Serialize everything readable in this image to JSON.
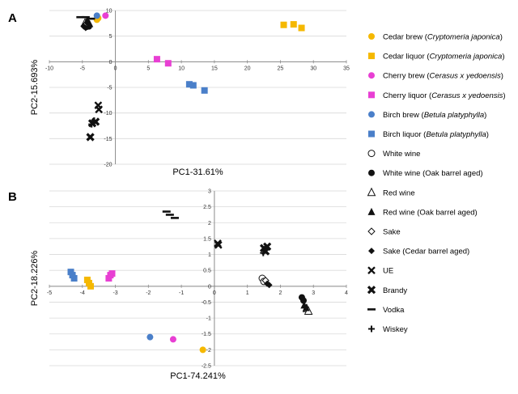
{
  "panels": {
    "a_label": "A",
    "b_label": "B"
  },
  "colors": {
    "cedar": "#f5b800",
    "cherry": "#e83fd3",
    "birch": "#4a7fc9",
    "black": "#111111",
    "grid": "#d9d9d9",
    "axis": "#8c8c8c"
  },
  "legend": [
    {
      "marker": "circle",
      "color": "cedar",
      "prefix": "Cedar brew (",
      "italic": "Cryptomeria japonica",
      "suffix": ")"
    },
    {
      "marker": "square",
      "color": "cedar",
      "prefix": "Cedar liquor (",
      "italic": "Cryptomeria japonica",
      "suffix": ")"
    },
    {
      "marker": "circle",
      "color": "cherry",
      "prefix": "Cherry brew (",
      "italic": "Cerasus x yedoensis",
      "suffix": ")"
    },
    {
      "marker": "square",
      "color": "cherry",
      "prefix": "Cherry liquor (",
      "italic": "Cerasus x yedoensis",
      "suffix": ")"
    },
    {
      "marker": "circle",
      "color": "birch",
      "prefix": "Birch brew (",
      "italic": "Betula platyphylla",
      "suffix": ")"
    },
    {
      "marker": "square",
      "color": "birch",
      "prefix": "Birch liquor (",
      "italic": "Betula platyphylla",
      "suffix": ")"
    },
    {
      "marker": "open-circle",
      "color": "black",
      "prefix": "White wine",
      "italic": "",
      "suffix": ""
    },
    {
      "marker": "circle",
      "color": "black",
      "prefix": "White wine (Oak barrel aged)",
      "italic": "",
      "suffix": ""
    },
    {
      "marker": "open-triangle",
      "color": "black",
      "prefix": "Red wine",
      "italic": "",
      "suffix": ""
    },
    {
      "marker": "triangle",
      "color": "black",
      "prefix": "Red wine (Oak barrel aged)",
      "italic": "",
      "suffix": ""
    },
    {
      "marker": "open-diamond",
      "color": "black",
      "prefix": "Sake",
      "italic": "",
      "suffix": ""
    },
    {
      "marker": "diamond",
      "color": "black",
      "prefix": "Sake (Cedar barrel aged)",
      "italic": "",
      "suffix": ""
    },
    {
      "marker": "x",
      "color": "black",
      "prefix": "UE",
      "italic": "",
      "suffix": ""
    },
    {
      "marker": "bigx",
      "color": "black",
      "prefix": "Brandy",
      "italic": "",
      "suffix": ""
    },
    {
      "marker": "dash",
      "color": "black",
      "prefix": "Vodka",
      "italic": "",
      "suffix": ""
    },
    {
      "marker": "plus",
      "color": "black",
      "prefix": "Wiskey",
      "italic": "",
      "suffix": ""
    }
  ],
  "chart_data": [
    {
      "panel": "A",
      "type": "scatter",
      "xlabel": "PC1-31.61%",
      "ylabel": "PC2-15.693%",
      "xlim": [
        -10,
        35
      ],
      "ylim": [
        -20,
        10
      ],
      "xticks": [
        -10,
        -5,
        0,
        5,
        10,
        15,
        20,
        25,
        30,
        35
      ],
      "yticks": [
        10,
        5,
        0,
        -5,
        -10,
        -15,
        -20
      ],
      "grid": true,
      "series": [
        {
          "name": "Cedar brew",
          "marker": "circle",
          "color": "cedar",
          "points": [
            [
              -2.8,
              8.2
            ],
            [
              -2.6,
              8.5
            ]
          ]
        },
        {
          "name": "Cedar liquor",
          "marker": "square",
          "color": "cedar",
          "points": [
            [
              25.5,
              7.2
            ],
            [
              27.0,
              7.3
            ],
            [
              28.2,
              6.6
            ]
          ]
        },
        {
          "name": "Cherry brew",
          "marker": "circle",
          "color": "cherry",
          "points": [
            [
              -1.5,
              9.0
            ]
          ]
        },
        {
          "name": "Cherry liquor",
          "marker": "square",
          "color": "cherry",
          "points": [
            [
              6.3,
              0.5
            ],
            [
              8.0,
              -0.3
            ]
          ]
        },
        {
          "name": "Birch brew",
          "marker": "circle",
          "color": "birch",
          "points": [
            [
              -2.8,
              9.0
            ]
          ]
        },
        {
          "name": "Birch liquor",
          "marker": "square",
          "color": "birch",
          "points": [
            [
              11.2,
              -4.4
            ],
            [
              11.8,
              -4.6
            ],
            [
              13.5,
              -5.6
            ]
          ]
        },
        {
          "name": "White wine",
          "marker": "open-circle",
          "color": "black",
          "points": [
            [
              -4.5,
              7.2
            ],
            [
              -4.2,
              7.0
            ]
          ]
        },
        {
          "name": "White wine (Oak barrel aged)",
          "marker": "circle",
          "color": "black",
          "points": [
            [
              -4.4,
              6.8
            ],
            [
              -4.0,
              6.9
            ]
          ]
        },
        {
          "name": "Red wine",
          "marker": "open-triangle",
          "color": "black",
          "points": [
            [
              -4.6,
              7.6
            ]
          ]
        },
        {
          "name": "Red wine (Oak barrel aged)",
          "marker": "triangle",
          "color": "black",
          "points": [
            [
              -4.3,
              8.0
            ],
            [
              -4.1,
              7.7
            ],
            [
              -3.9,
              7.4
            ]
          ]
        },
        {
          "name": "Sake",
          "marker": "open-diamond",
          "color": "black",
          "points": [
            [
              -4.7,
              7.0
            ]
          ]
        },
        {
          "name": "Sake (Cedar barrel aged)",
          "marker": "diamond",
          "color": "black",
          "points": [
            [
              -4.8,
              6.9
            ],
            [
              -4.5,
              6.6
            ]
          ]
        },
        {
          "name": "UE",
          "marker": "x",
          "color": "black",
          "points": [
            [
              -2.6,
              -8.5
            ],
            [
              -2.5,
              -9.3
            ]
          ]
        },
        {
          "name": "Brandy",
          "marker": "bigx",
          "color": "black",
          "points": [
            [
              -3.5,
              -12.0
            ],
            [
              -3.0,
              -11.7
            ],
            [
              -3.8,
              -14.7
            ]
          ]
        },
        {
          "name": "Vodka",
          "marker": "dash",
          "color": "black",
          "points": [
            [
              -5.3,
              8.7
            ],
            [
              -4.5,
              8.7
            ],
            [
              -3.7,
              8.4
            ]
          ]
        },
        {
          "name": "Wiskey",
          "marker": "plus",
          "color": "black",
          "points": [
            [
              -3.2,
              -11.5
            ],
            [
              -3.6,
              -12.2
            ]
          ]
        }
      ]
    },
    {
      "panel": "B",
      "type": "scatter",
      "xlabel": "PC1-74.241%",
      "ylabel": "PC2-18.226%",
      "xlim": [
        -5,
        4
      ],
      "ylim": [
        -2.5,
        3
      ],
      "xticks": [
        -5,
        -4,
        -3,
        -2,
        -1,
        0,
        1,
        2,
        3,
        4
      ],
      "yticks": [
        3,
        2.5,
        2,
        1.5,
        1,
        0.5,
        0,
        -0.5,
        -1,
        -1.5,
        -2,
        -2.5
      ],
      "grid": true,
      "series": [
        {
          "name": "Cedar brew",
          "marker": "circle",
          "color": "cedar",
          "points": [
            [
              -0.35,
              -2.0
            ]
          ]
        },
        {
          "name": "Cedar liquor",
          "marker": "square",
          "color": "cedar",
          "points": [
            [
              -3.85,
              0.2
            ],
            [
              -3.8,
              0.1
            ],
            [
              -3.75,
              0.0
            ]
          ]
        },
        {
          "name": "Cherry brew",
          "marker": "circle",
          "color": "cherry",
          "points": [
            [
              -1.25,
              -1.67
            ]
          ]
        },
        {
          "name": "Cherry liquor",
          "marker": "square",
          "color": "cherry",
          "points": [
            [
              -3.2,
              0.25
            ],
            [
              -3.15,
              0.35
            ],
            [
              -3.1,
              0.4
            ]
          ]
        },
        {
          "name": "Birch brew",
          "marker": "circle",
          "color": "birch",
          "points": [
            [
              -1.95,
              -1.6
            ]
          ]
        },
        {
          "name": "Birch liquor",
          "marker": "square",
          "color": "birch",
          "points": [
            [
              -4.35,
              0.45
            ],
            [
              -4.3,
              0.35
            ],
            [
              -4.25,
              0.25
            ]
          ]
        },
        {
          "name": "White wine",
          "marker": "open-circle",
          "color": "black",
          "points": [
            [
              1.45,
              0.25
            ],
            [
              1.5,
              0.15
            ]
          ]
        },
        {
          "name": "White wine (Oak barrel aged)",
          "marker": "circle",
          "color": "black",
          "points": [
            [
              2.65,
              -0.35
            ],
            [
              2.7,
              -0.45
            ]
          ]
        },
        {
          "name": "Red wine",
          "marker": "open-triangle",
          "color": "black",
          "points": [
            [
              2.8,
              -0.7
            ],
            [
              2.85,
              -0.78
            ]
          ]
        },
        {
          "name": "Red wine (Oak barrel aged)",
          "marker": "triangle",
          "color": "black",
          "points": [
            [
              2.72,
              -0.6
            ],
            [
              2.78,
              -0.68
            ]
          ]
        },
        {
          "name": "Sake",
          "marker": "open-diamond",
          "color": "black",
          "points": [
            [
              1.55,
              0.18
            ]
          ]
        },
        {
          "name": "Sake (Cedar barrel aged)",
          "marker": "diamond",
          "color": "black",
          "points": [
            [
              1.6,
              0.08
            ],
            [
              1.66,
              0.04
            ]
          ]
        },
        {
          "name": "UE",
          "marker": "x",
          "color": "black",
          "points": [
            [
              0.1,
              1.35
            ],
            [
              0.12,
              1.3
            ]
          ]
        },
        {
          "name": "Brandy",
          "marker": "bigx",
          "color": "black",
          "points": [
            [
              1.5,
              1.2
            ],
            [
              1.55,
              1.1
            ],
            [
              1.6,
              1.25
            ]
          ]
        },
        {
          "name": "Vodka",
          "marker": "dash",
          "color": "black",
          "points": [
            [
              -1.45,
              2.35
            ],
            [
              -1.35,
              2.25
            ],
            [
              -1.2,
              2.15
            ]
          ]
        },
        {
          "name": "Wiskey",
          "marker": "plus",
          "color": "black",
          "points": [
            [
              1.48,
              1.05
            ],
            [
              1.58,
              1.15
            ]
          ]
        }
      ]
    }
  ]
}
